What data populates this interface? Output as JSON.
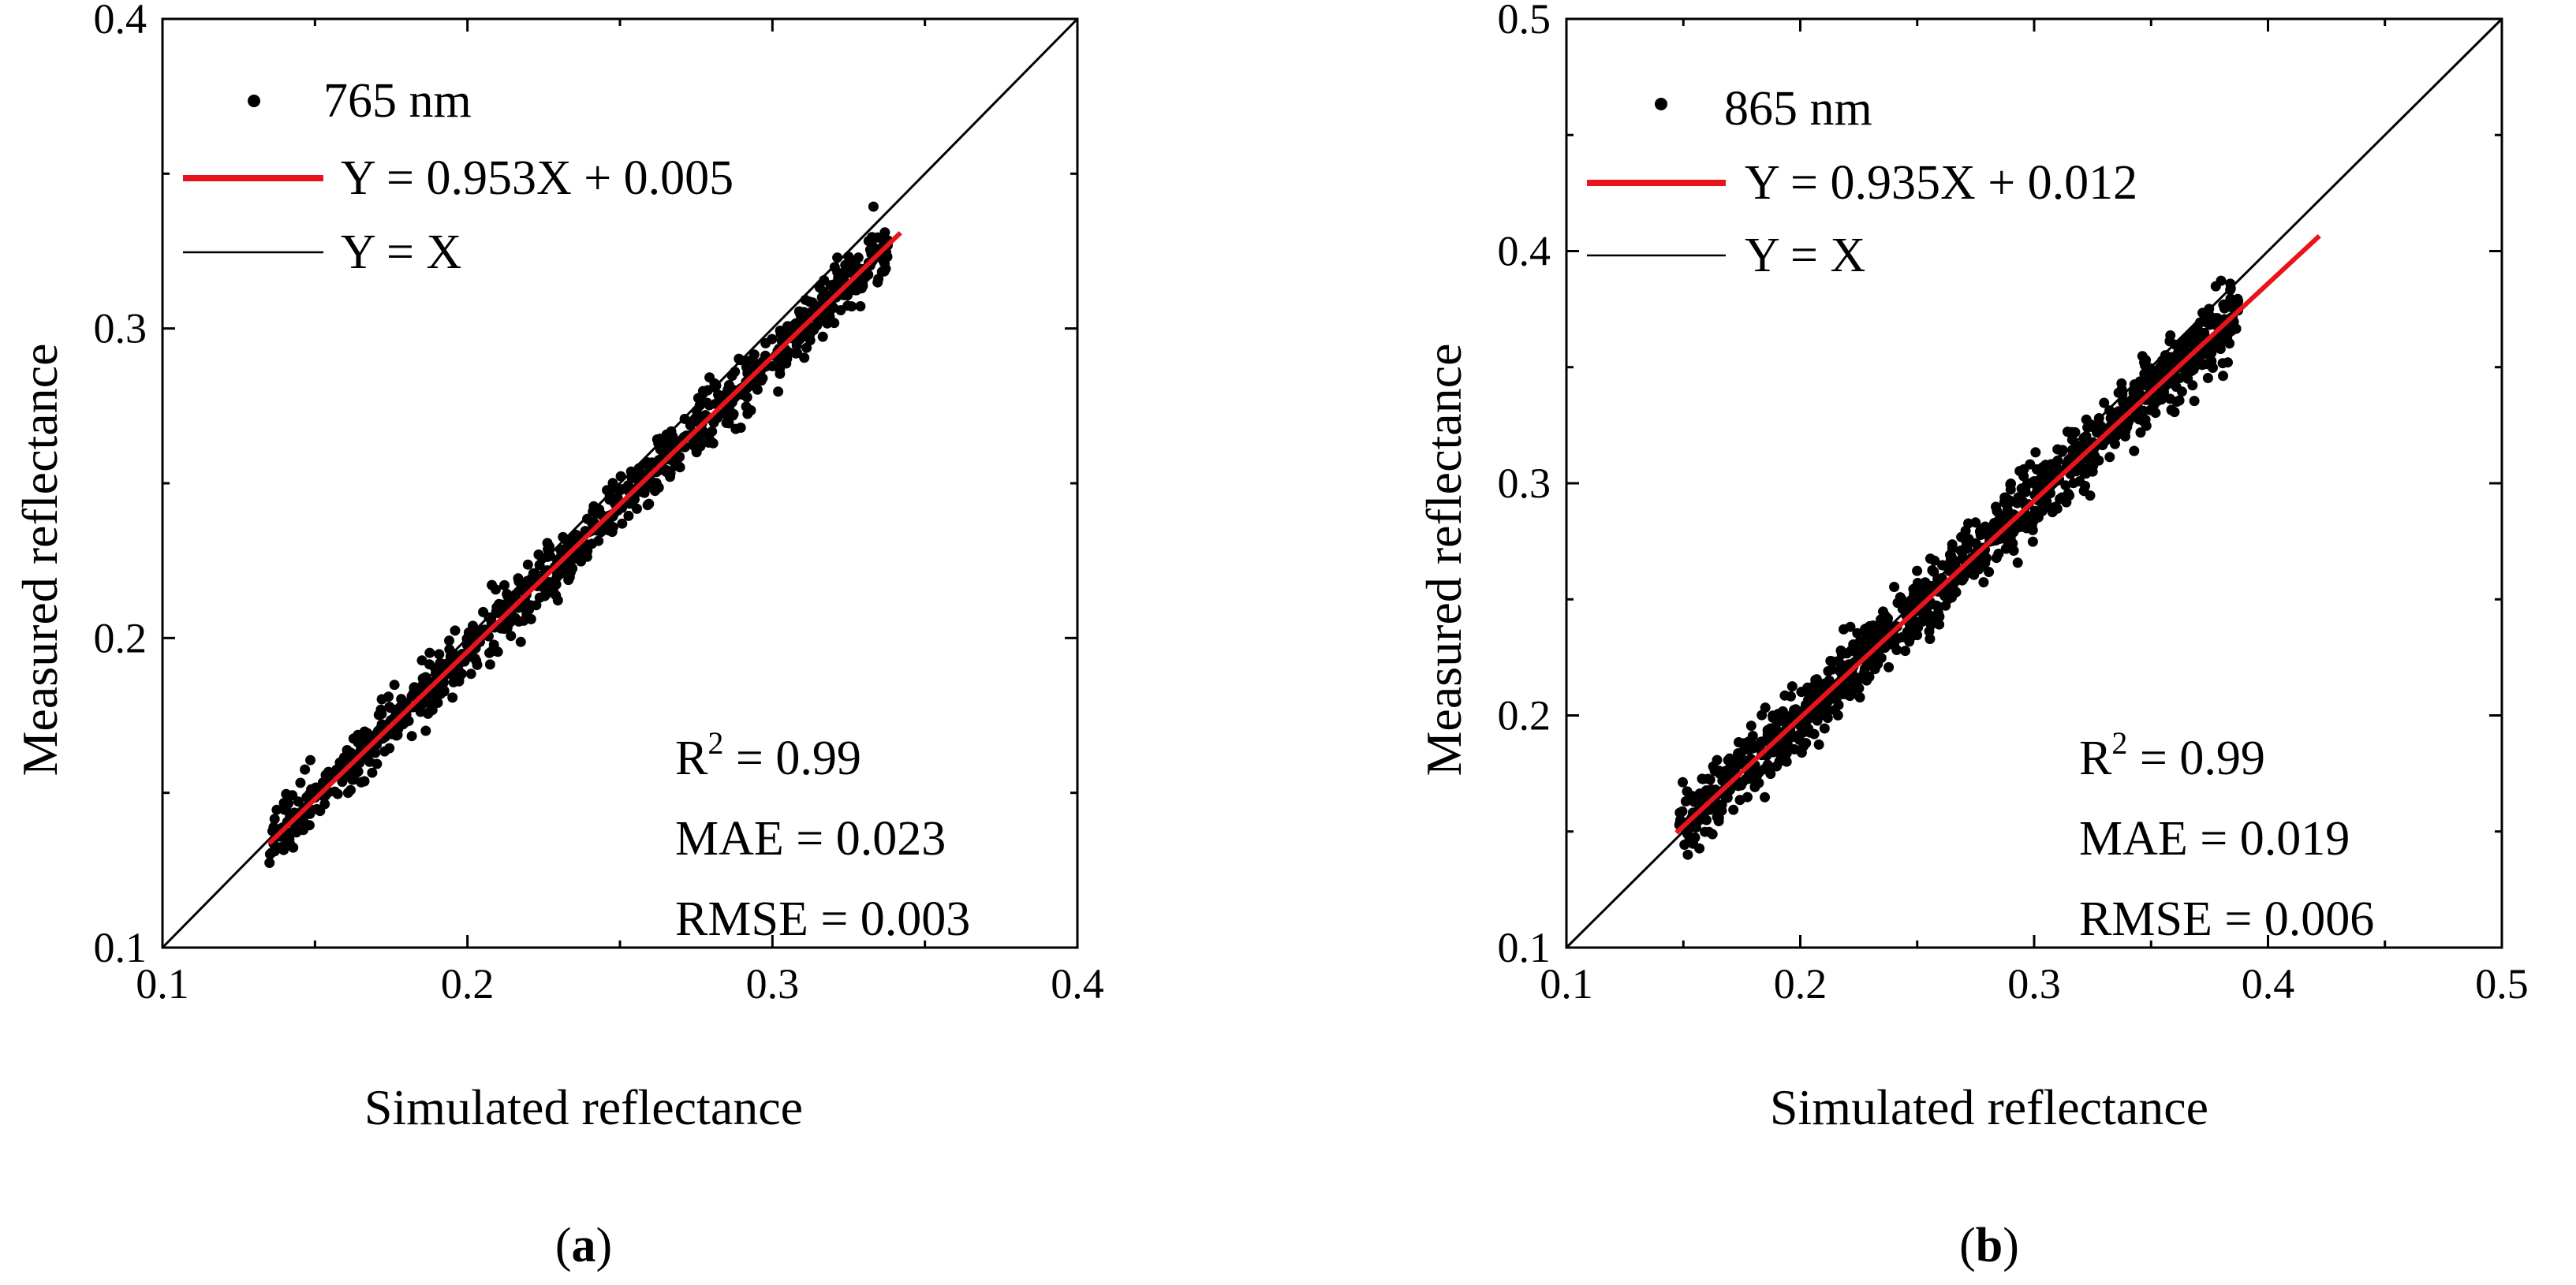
{
  "chart_data": [
    {
      "type": "scatter",
      "panel_label": "a",
      "xlabel": "Simulated reflectance",
      "ylabel": "Measured reflectance",
      "xlim": [
        0.1,
        0.4
      ],
      "ylim": [
        0.1,
        0.4
      ],
      "xticks": [
        "0.1",
        "0.2",
        "0.3",
        "0.4"
      ],
      "yticks": [
        "0.1",
        "0.2",
        "0.3",
        "0.4"
      ],
      "legend": {
        "position": "top-left",
        "entries": [
          "765 nm",
          "Y = 0.953X + 0.005",
          "Y = X"
        ]
      },
      "fit": {
        "slope": 0.953,
        "intercept": 0.005,
        "x_range": [
          0.135,
          0.342
        ],
        "color": "#e8141c"
      },
      "identity_line": true,
      "stats": {
        "r2_label": "R",
        "r2_sup": "2",
        "r2_value": " = 0.99",
        "mae": "MAE = 0.023",
        "rmse": "RMSE = 0.003"
      },
      "scatter": {
        "n": 900,
        "x_range": [
          0.135,
          0.338
        ],
        "spread": 0.0045,
        "seed": 7
      }
    },
    {
      "type": "scatter",
      "panel_label": "b",
      "xlabel": "Simulated reflectance",
      "ylabel": "Measured reflectance",
      "xlim": [
        0.1,
        0.5
      ],
      "ylim": [
        0.1,
        0.5
      ],
      "xticks": [
        "0.1",
        "0.2",
        "0.3",
        "0.4",
        "0.5"
      ],
      "yticks": [
        "0.1",
        "0.2",
        "0.3",
        "0.4",
        "0.5"
      ],
      "legend": {
        "position": "top-left",
        "entries": [
          "865 nm",
          "Y = 0.935X + 0.012",
          "Y = X"
        ]
      },
      "fit": {
        "slope": 0.935,
        "intercept": 0.012,
        "x_range": [
          0.147,
          0.422
        ],
        "color": "#e8141c"
      },
      "identity_line": true,
      "stats": {
        "r2_label": "R",
        "r2_sup": "2",
        "r2_value": " = 0.99",
        "mae": "MAE = 0.019",
        "rmse": "RMSE = 0.006"
      },
      "scatter": {
        "n": 1100,
        "x_range": [
          0.148,
          0.388
        ],
        "spread": 0.0075,
        "seed": 13
      }
    }
  ]
}
